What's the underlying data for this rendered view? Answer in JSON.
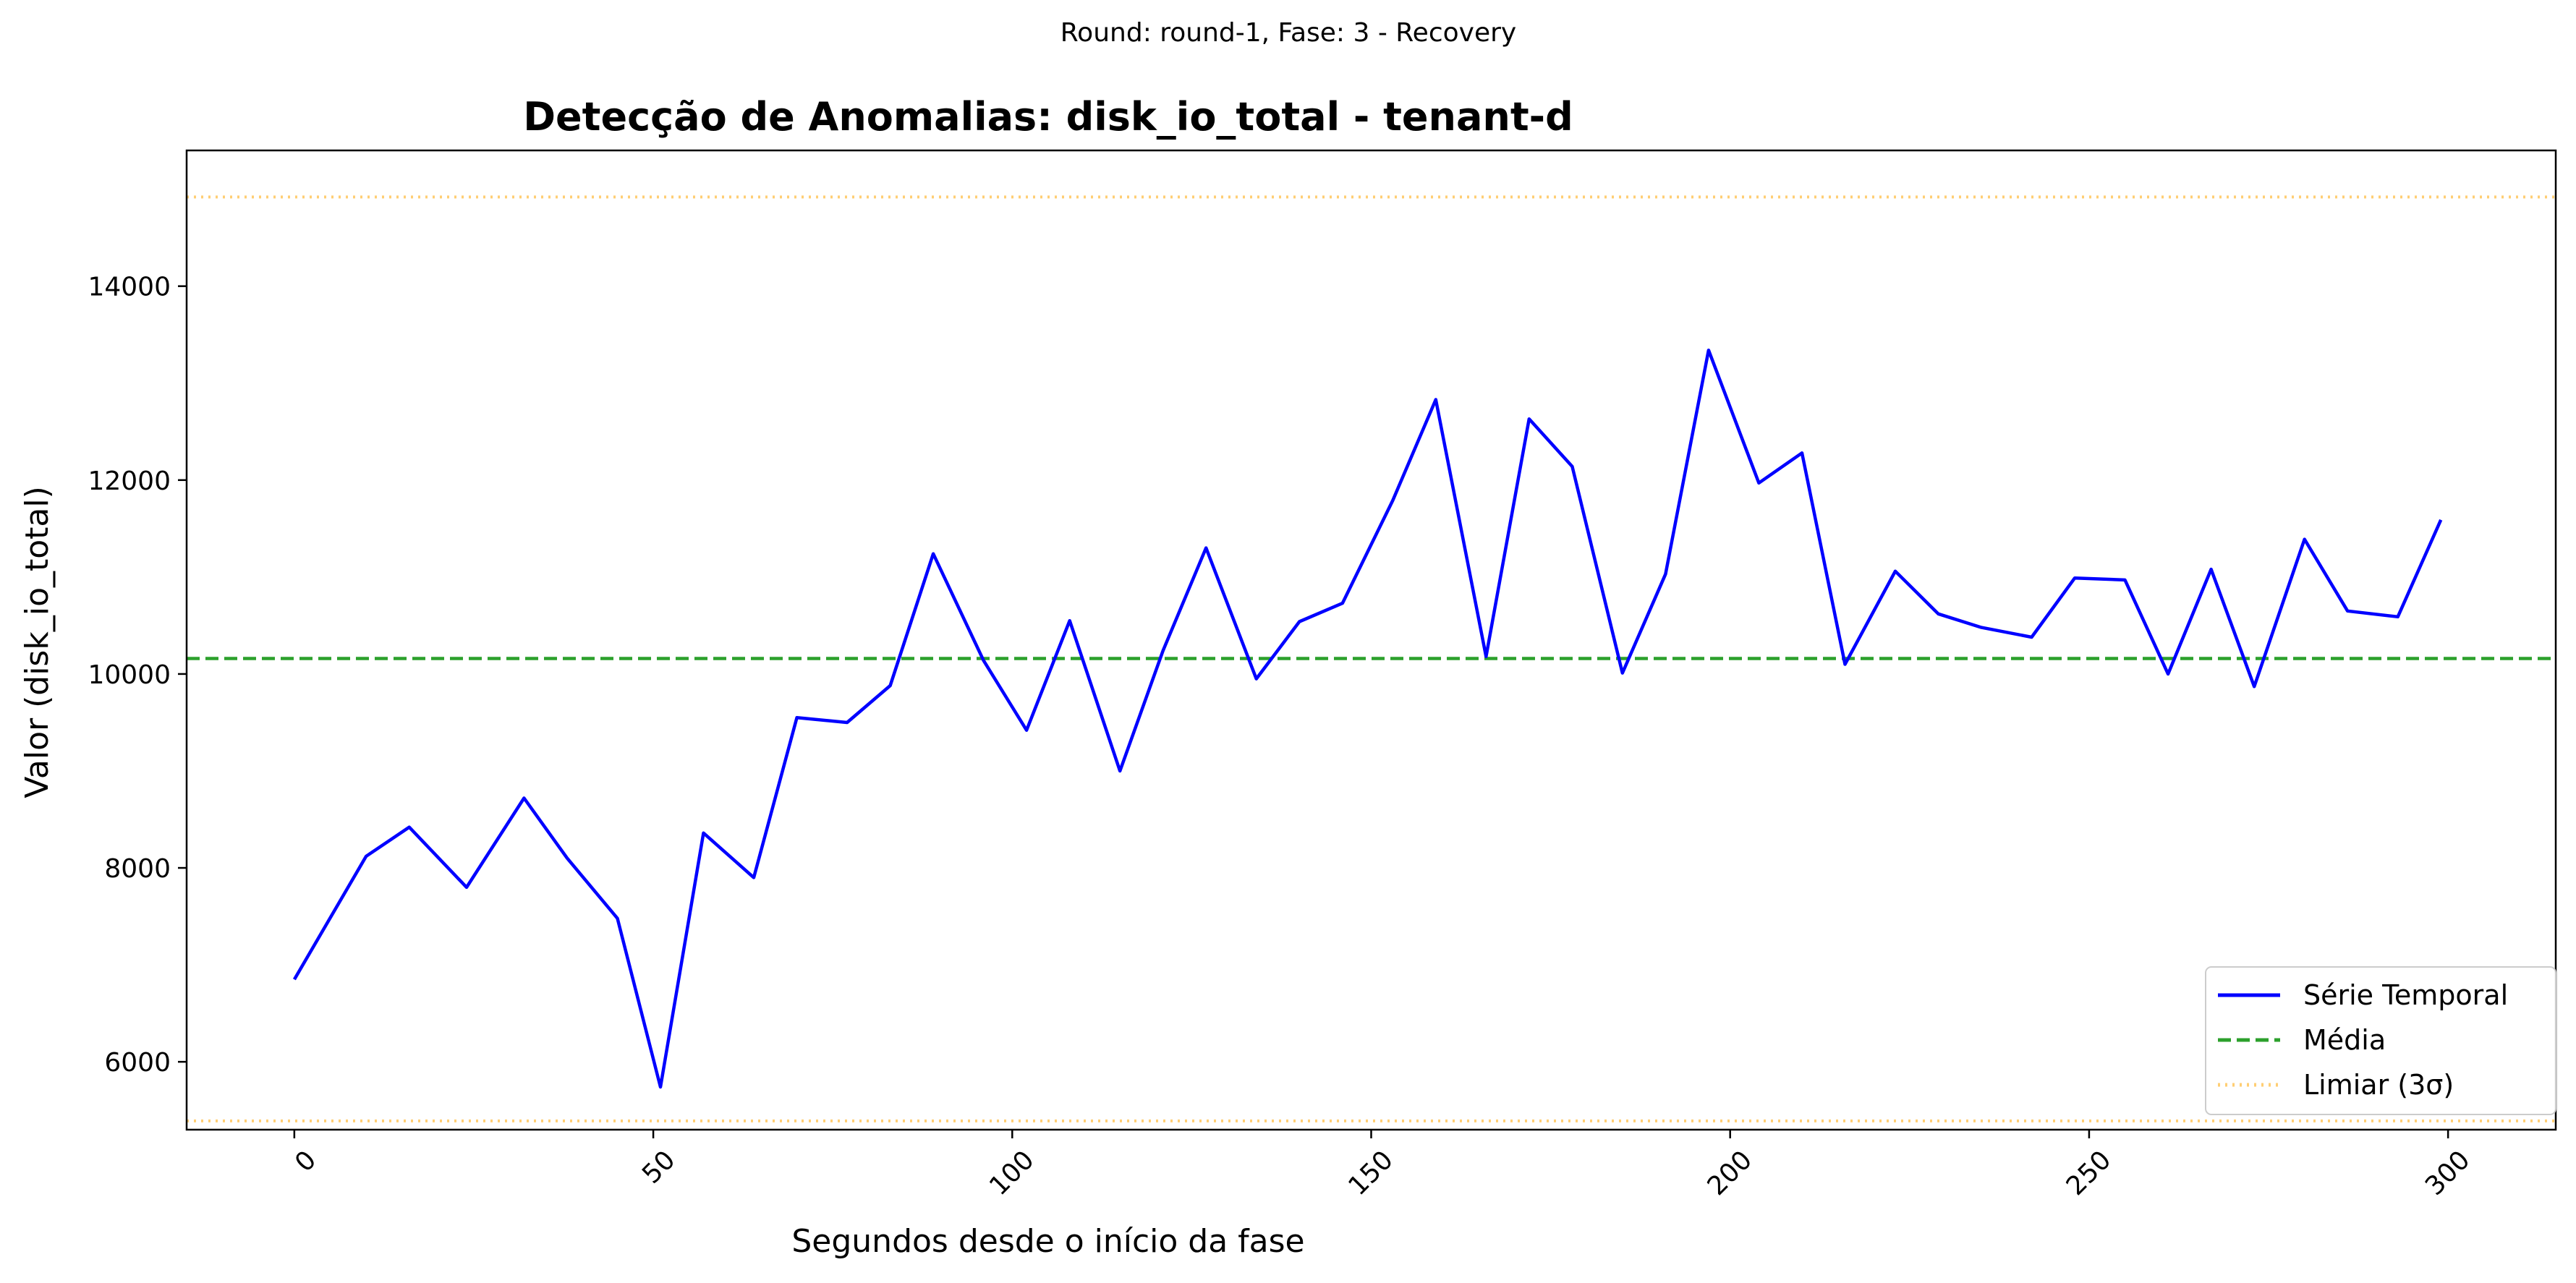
{
  "figure": {
    "suptitle": "Round: round-1, Fase: 3 - Recovery"
  },
  "chart_data": {
    "type": "line",
    "title": "Detecção de Anomalias: disk_io_total - tenant-d",
    "xlabel": "Segundos desde o início da fase",
    "ylabel": "Valor (disk_io_total)",
    "xlim": [
      -15,
      315
    ],
    "ylim": [
      5300,
      15400
    ],
    "x_ticks": [
      0,
      50,
      100,
      150,
      200,
      250,
      300
    ],
    "y_ticks": [
      6000,
      8000,
      10000,
      12000,
      14000
    ],
    "grid": false,
    "legend_position": "lower right",
    "legend": [
      "Série Temporal",
      "Média",
      "Limiar (3σ)"
    ],
    "colors": {
      "series": "#0000ff",
      "mean": "#2ca02c",
      "threshold": "#ffa500"
    },
    "series": [
      {
        "name": "Série Temporal",
        "x": [
          0,
          10,
          16,
          24,
          32,
          38,
          45,
          51,
          57,
          64,
          70,
          77,
          83,
          89,
          96,
          102,
          108,
          115,
          121,
          127,
          134,
          140,
          146,
          153,
          159,
          166,
          172,
          178,
          185,
          191,
          197,
          204,
          210,
          216,
          223,
          229,
          235,
          242,
          248,
          255,
          261,
          267,
          273,
          280,
          286,
          293,
          299
        ],
        "values": [
          6850,
          8120,
          8420,
          7800,
          8720,
          8100,
          7480,
          5740,
          8360,
          7900,
          9550,
          9500,
          9880,
          11240,
          10140,
          9420,
          10550,
          9000,
          10240,
          11300,
          9950,
          10540,
          10730,
          11790,
          12830,
          10180,
          12630,
          12140,
          10010,
          11030,
          13340,
          11970,
          12280,
          10100,
          11060,
          10620,
          10480,
          10380,
          10990,
          10970,
          10000,
          11080,
          9870,
          11390,
          10650,
          10590,
          11590
        ]
      }
    ],
    "mean": 10160,
    "thresholds": [
      14920,
      5390
    ]
  }
}
